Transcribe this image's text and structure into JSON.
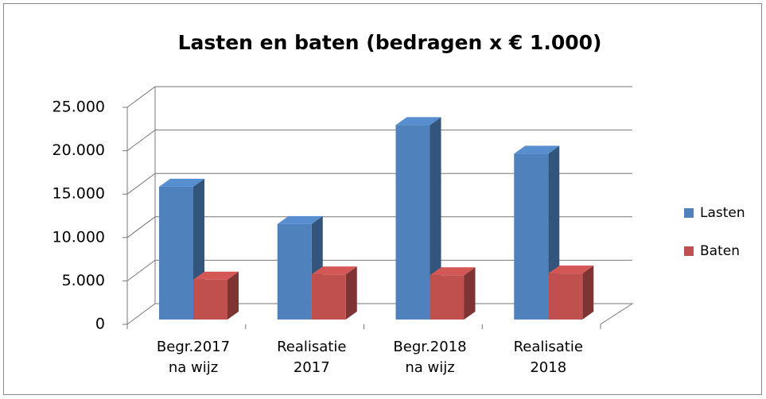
{
  "chart_data": {
    "type": "bar3d",
    "title": "Lasten en baten (bedragen x € 1.000)",
    "categories": [
      "Begr.2017\nna wijz",
      "Realisatie\n2017",
      "Begr.2018\nna wijz",
      "Realisatie\n2018"
    ],
    "series": [
      {
        "name": "Lasten",
        "color": "#4f81bd",
        "values": [
          15300,
          11000,
          22400,
          19100
        ]
      },
      {
        "name": "Baten",
        "color": "#c0504d",
        "values": [
          4600,
          5200,
          5100,
          5300
        ]
      }
    ],
    "ylim": [
      0,
      25000
    ],
    "yticks": [
      0,
      {
        "value": 5000,
        "label": "5.000"
      },
      {
        "value": 10000,
        "label": "10.000"
      },
      {
        "value": 15000,
        "label": "15.000"
      },
      {
        "value": 20000,
        "label": "20.000"
      },
      {
        "value": 25000,
        "label": "25.000"
      }
    ],
    "grid": true,
    "legend": "right"
  }
}
